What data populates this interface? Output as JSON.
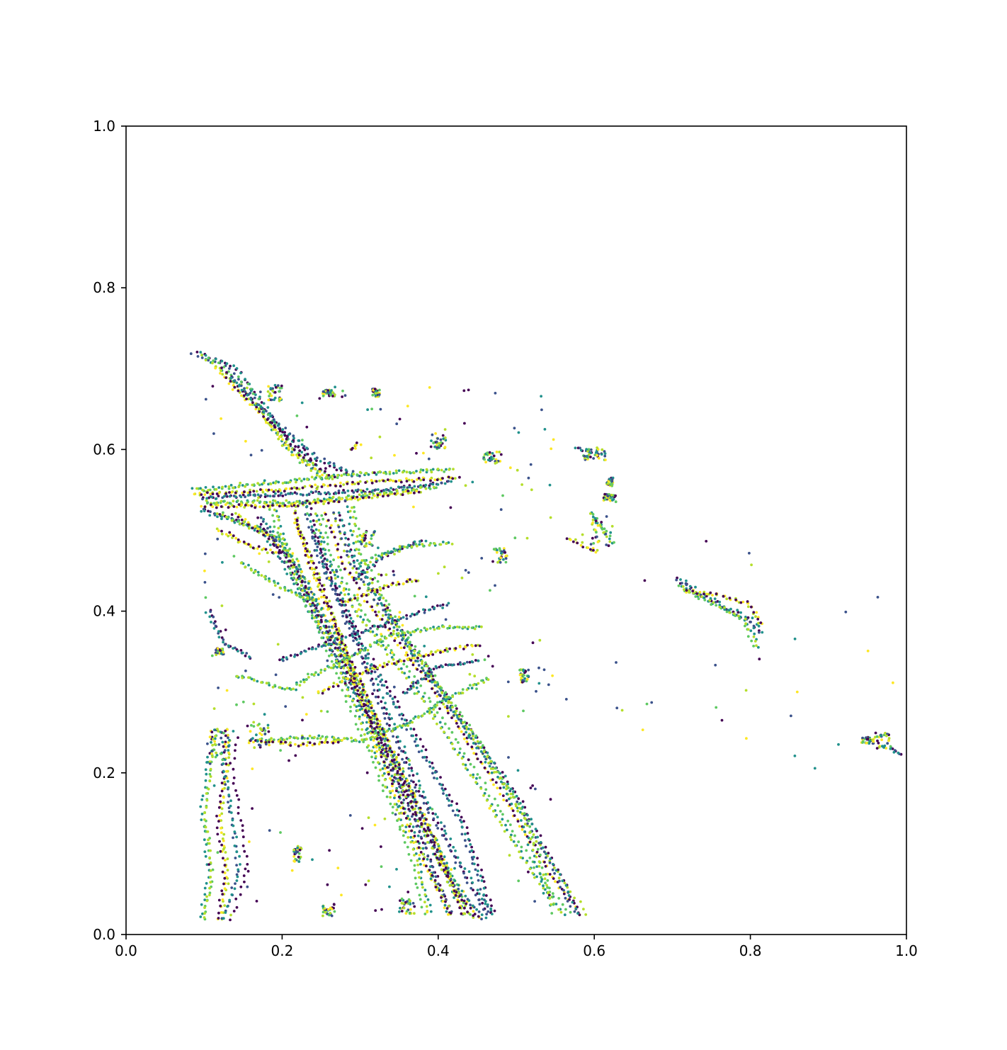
{
  "chart_data": {
    "type": "scatter",
    "title": "",
    "xlabel": "",
    "ylabel": "",
    "xlim": [
      0.0,
      1.0
    ],
    "ylim": [
      0.0,
      1.0
    ],
    "grid": false,
    "legend": "none",
    "colormap": "viridis",
    "palette": [
      "#440154",
      "#3b528b",
      "#21918c",
      "#5ec962",
      "#b5de2b",
      "#fde725"
    ],
    "x_ticks": [
      0.0,
      0.2,
      0.4,
      0.6,
      0.8,
      1.0
    ],
    "x_tick_labels": [
      "0.0",
      "0.2",
      "0.4",
      "0.6",
      "0.8",
      "1.0"
    ],
    "y_ticks": [
      0.0,
      0.2,
      0.4,
      0.6,
      0.8,
      1.0
    ],
    "y_tick_labels": [
      "0.0",
      "0.2",
      "0.4",
      "0.6",
      "0.8",
      "1.0"
    ],
    "tracks": [
      [
        [
          0.09,
          0.72
        ],
        [
          0.14,
          0.7
        ],
        [
          0.2,
          0.62
        ],
        [
          0.25,
          0.57
        ]
      ],
      [
        [
          0.1,
          0.715
        ],
        [
          0.15,
          0.68
        ],
        [
          0.21,
          0.6
        ],
        [
          0.26,
          0.56
        ]
      ],
      [
        [
          0.12,
          0.7
        ],
        [
          0.17,
          0.65
        ],
        [
          0.22,
          0.595
        ],
        [
          0.27,
          0.56
        ]
      ],
      [
        [
          0.13,
          0.69
        ],
        [
          0.18,
          0.64
        ],
        [
          0.24,
          0.59
        ],
        [
          0.3,
          0.565
        ]
      ],
      [
        [
          0.09,
          0.55
        ],
        [
          0.2,
          0.56
        ],
        [
          0.3,
          0.57
        ],
        [
          0.42,
          0.575
        ]
      ],
      [
        [
          0.09,
          0.545
        ],
        [
          0.2,
          0.55
        ],
        [
          0.31,
          0.56
        ],
        [
          0.43,
          0.565
        ]
      ],
      [
        [
          0.1,
          0.54
        ],
        [
          0.22,
          0.545
        ],
        [
          0.33,
          0.55
        ],
        [
          0.42,
          0.56
        ]
      ],
      [
        [
          0.1,
          0.535
        ],
        [
          0.22,
          0.535
        ],
        [
          0.32,
          0.545
        ],
        [
          0.4,
          0.555
        ]
      ],
      [
        [
          0.095,
          0.53
        ],
        [
          0.2,
          0.53
        ],
        [
          0.3,
          0.54
        ],
        [
          0.38,
          0.55
        ]
      ],
      [
        [
          0.1,
          0.525
        ],
        [
          0.18,
          0.5
        ],
        [
          0.24,
          0.4
        ],
        [
          0.31,
          0.27
        ],
        [
          0.38,
          0.12
        ],
        [
          0.42,
          0.02
        ]
      ],
      [
        [
          0.12,
          0.52
        ],
        [
          0.2,
          0.49
        ],
        [
          0.26,
          0.38
        ],
        [
          0.33,
          0.24
        ],
        [
          0.4,
          0.1
        ],
        [
          0.44,
          0.02
        ]
      ],
      [
        [
          0.14,
          0.52
        ],
        [
          0.21,
          0.47
        ],
        [
          0.27,
          0.36
        ],
        [
          0.34,
          0.22
        ],
        [
          0.41,
          0.08
        ],
        [
          0.45,
          0.015
        ]
      ],
      [
        [
          0.17,
          0.515
        ],
        [
          0.22,
          0.45
        ],
        [
          0.28,
          0.34
        ],
        [
          0.35,
          0.2
        ],
        [
          0.42,
          0.06
        ],
        [
          0.46,
          0.015
        ]
      ],
      [
        [
          0.19,
          0.525
        ],
        [
          0.22,
          0.44
        ],
        [
          0.26,
          0.36
        ],
        [
          0.31,
          0.24
        ],
        [
          0.37,
          0.1
        ],
        [
          0.39,
          0.02
        ]
      ],
      [
        [
          0.21,
          0.53
        ],
        [
          0.23,
          0.46
        ],
        [
          0.27,
          0.37
        ],
        [
          0.32,
          0.26
        ],
        [
          0.39,
          0.12
        ],
        [
          0.43,
          0.02
        ]
      ],
      [
        [
          0.23,
          0.535
        ],
        [
          0.25,
          0.46
        ],
        [
          0.3,
          0.36
        ],
        [
          0.36,
          0.26
        ],
        [
          0.43,
          0.14
        ],
        [
          0.47,
          0.02
        ]
      ],
      [
        [
          0.25,
          0.52
        ],
        [
          0.26,
          0.47
        ],
        [
          0.3,
          0.4
        ],
        [
          0.38,
          0.3
        ],
        [
          0.46,
          0.18
        ],
        [
          0.53,
          0.07
        ],
        [
          0.57,
          0.02
        ]
      ],
      [
        [
          0.26,
          0.52
        ],
        [
          0.28,
          0.46
        ],
        [
          0.32,
          0.4
        ],
        [
          0.4,
          0.3
        ],
        [
          0.48,
          0.18
        ],
        [
          0.55,
          0.07
        ],
        [
          0.59,
          0.02
        ]
      ],
      [
        [
          0.27,
          0.52
        ],
        [
          0.29,
          0.46
        ],
        [
          0.34,
          0.39
        ],
        [
          0.41,
          0.29
        ],
        [
          0.5,
          0.17
        ],
        [
          0.56,
          0.06
        ],
        [
          0.58,
          0.02
        ]
      ],
      [
        [
          0.29,
          0.53
        ],
        [
          0.3,
          0.47
        ],
        [
          0.35,
          0.38
        ],
        [
          0.43,
          0.27
        ],
        [
          0.51,
          0.15
        ],
        [
          0.55,
          0.03
        ]
      ],
      [
        [
          0.22,
          0.51
        ],
        [
          0.25,
          0.44
        ],
        [
          0.29,
          0.33
        ],
        [
          0.33,
          0.22
        ],
        [
          0.38,
          0.1
        ],
        [
          0.42,
          0.02
        ]
      ],
      [
        [
          0.24,
          0.5
        ],
        [
          0.28,
          0.4
        ],
        [
          0.33,
          0.28
        ],
        [
          0.38,
          0.17
        ],
        [
          0.45,
          0.05
        ],
        [
          0.47,
          0.02
        ]
      ],
      [
        [
          0.1,
          0.02
        ],
        [
          0.11,
          0.08
        ],
        [
          0.1,
          0.15
        ],
        [
          0.11,
          0.22
        ],
        [
          0.12,
          0.26
        ]
      ],
      [
        [
          0.12,
          0.02
        ],
        [
          0.13,
          0.07
        ],
        [
          0.12,
          0.14
        ],
        [
          0.13,
          0.21
        ],
        [
          0.13,
          0.26
        ]
      ],
      [
        [
          0.13,
          0.02
        ],
        [
          0.15,
          0.08
        ],
        [
          0.14,
          0.15
        ],
        [
          0.13,
          0.21
        ],
        [
          0.14,
          0.25
        ]
      ],
      [
        [
          0.17,
          0.24
        ],
        [
          0.24,
          0.245
        ],
        [
          0.3,
          0.24
        ],
        [
          0.36,
          0.26
        ],
        [
          0.41,
          0.29
        ],
        [
          0.47,
          0.32
        ]
      ],
      [
        [
          0.16,
          0.24
        ],
        [
          0.22,
          0.235
        ],
        [
          0.28,
          0.24
        ]
      ],
      [
        [
          0.71,
          0.44
        ],
        [
          0.74,
          0.42
        ],
        [
          0.78,
          0.4
        ],
        [
          0.8,
          0.39
        ],
        [
          0.82,
          0.37
        ]
      ],
      [
        [
          0.71,
          0.43
        ],
        [
          0.75,
          0.41
        ],
        [
          0.79,
          0.39
        ],
        [
          0.81,
          0.35
        ]
      ],
      [
        [
          0.72,
          0.425
        ],
        [
          0.76,
          0.42
        ],
        [
          0.8,
          0.41
        ],
        [
          0.82,
          0.38
        ]
      ],
      [
        [
          0.2,
          0.34
        ],
        [
          0.26,
          0.36
        ],
        [
          0.32,
          0.38
        ],
        [
          0.38,
          0.4
        ],
        [
          0.42,
          0.41
        ]
      ],
      [
        [
          0.22,
          0.31
        ],
        [
          0.28,
          0.34
        ],
        [
          0.34,
          0.37
        ],
        [
          0.4,
          0.38
        ],
        [
          0.46,
          0.38
        ]
      ],
      [
        [
          0.25,
          0.3
        ],
        [
          0.32,
          0.33
        ],
        [
          0.4,
          0.35
        ],
        [
          0.46,
          0.36
        ]
      ],
      [
        [
          0.29,
          0.44
        ],
        [
          0.33,
          0.47
        ],
        [
          0.38,
          0.49
        ]
      ],
      [
        [
          0.3,
          0.46
        ],
        [
          0.36,
          0.48
        ],
        [
          0.42,
          0.485
        ]
      ],
      [
        [
          0.28,
          0.41
        ],
        [
          0.33,
          0.43
        ],
        [
          0.38,
          0.44
        ]
      ],
      [
        [
          0.36,
          0.3
        ],
        [
          0.4,
          0.33
        ],
        [
          0.46,
          0.34
        ]
      ],
      [
        [
          0.15,
          0.46
        ],
        [
          0.2,
          0.43
        ],
        [
          0.25,
          0.41
        ]
      ],
      [
        [
          0.12,
          0.5
        ],
        [
          0.16,
          0.48
        ],
        [
          0.2,
          0.47
        ]
      ],
      [
        [
          0.11,
          0.4
        ],
        [
          0.13,
          0.36
        ],
        [
          0.17,
          0.34
        ]
      ],
      [
        [
          0.14,
          0.32
        ],
        [
          0.18,
          0.31
        ],
        [
          0.22,
          0.3
        ]
      ],
      [
        [
          0.29,
          0.6
        ],
        [
          0.3,
          0.61
        ]
      ],
      [
        [
          0.58,
          0.6
        ],
        [
          0.62,
          0.595
        ]
      ],
      [
        [
          0.6,
          0.52
        ],
        [
          0.63,
          0.48
        ]
      ],
      [
        [
          0.57,
          0.49
        ],
        [
          0.61,
          0.47
        ]
      ],
      [
        [
          0.98,
          0.23
        ],
        [
          1.0,
          0.22
        ]
      ]
    ],
    "clusters": [
      [
        0.115,
        0.235,
        0.012,
        0.02
      ],
      [
        0.17,
        0.245,
        0.015,
        0.015
      ],
      [
        0.61,
        0.5,
        0.015,
        0.02
      ],
      [
        0.6,
        0.595,
        0.015,
        0.008
      ],
      [
        0.62,
        0.54,
        0.008,
        0.005
      ],
      [
        0.62,
        0.56,
        0.004,
        0.005
      ],
      [
        0.51,
        0.32,
        0.006,
        0.008
      ],
      [
        0.32,
        0.67,
        0.005,
        0.005
      ],
      [
        0.26,
        0.67,
        0.008,
        0.004
      ],
      [
        0.19,
        0.67,
        0.01,
        0.01
      ],
      [
        0.4,
        0.61,
        0.01,
        0.01
      ],
      [
        0.47,
        0.59,
        0.012,
        0.008
      ],
      [
        0.26,
        0.03,
        0.008,
        0.008
      ],
      [
        0.22,
        0.1,
        0.005,
        0.01
      ],
      [
        0.12,
        0.35,
        0.005,
        0.004
      ],
      [
        0.31,
        0.49,
        0.01,
        0.01
      ],
      [
        0.48,
        0.47,
        0.01,
        0.01
      ],
      [
        0.36,
        0.035,
        0.01,
        0.01
      ],
      [
        0.97,
        0.24,
        0.01,
        0.01
      ],
      [
        0.95,
        0.24,
        0.008,
        0.004
      ]
    ]
  }
}
